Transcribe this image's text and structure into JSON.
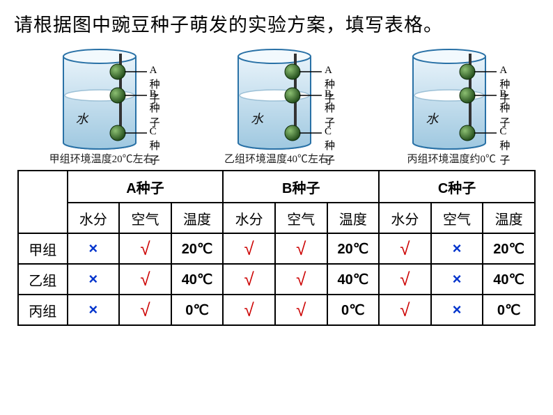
{
  "title": "请根据图中豌豆种子萌发的实验方案，填写表格。",
  "beakers": [
    {
      "caption": "甲组环境温度20℃左右",
      "water_label": "水"
    },
    {
      "caption": "乙组环境温度40℃左右",
      "water_label": "水"
    },
    {
      "caption": "丙组环境温度约0℃",
      "water_label": "水"
    }
  ],
  "seed_labels": {
    "a": "A种子",
    "b": "B种子",
    "c": "C种子"
  },
  "table": {
    "col_group_headers": [
      "A种子",
      "B种子",
      "C种子"
    ],
    "sub_headers": [
      "水分",
      "空气",
      "温度"
    ],
    "row_labels": [
      "甲组",
      "乙组",
      "丙组"
    ],
    "rows": [
      [
        {
          "v": "×",
          "t": "cross"
        },
        {
          "v": "√",
          "t": "tick"
        },
        {
          "v": "20℃",
          "t": "temp"
        },
        {
          "v": "√",
          "t": "tick"
        },
        {
          "v": "√",
          "t": "tick"
        },
        {
          "v": "20℃",
          "t": "temp"
        },
        {
          "v": "√",
          "t": "tick"
        },
        {
          "v": "×",
          "t": "cross"
        },
        {
          "v": "20℃",
          "t": "temp"
        }
      ],
      [
        {
          "v": "×",
          "t": "cross"
        },
        {
          "v": "√",
          "t": "tick"
        },
        {
          "v": "40℃",
          "t": "temp"
        },
        {
          "v": "√",
          "t": "tick"
        },
        {
          "v": "√",
          "t": "tick"
        },
        {
          "v": "40℃",
          "t": "temp"
        },
        {
          "v": "√",
          "t": "tick"
        },
        {
          "v": "×",
          "t": "cross"
        },
        {
          "v": "40℃",
          "t": "temp"
        }
      ],
      [
        {
          "v": "×",
          "t": "cross"
        },
        {
          "v": "√",
          "t": "tick"
        },
        {
          "v": "0℃",
          "t": "temp"
        },
        {
          "v": "√",
          "t": "tick"
        },
        {
          "v": "√",
          "t": "tick"
        },
        {
          "v": "0℃",
          "t": "temp"
        },
        {
          "v": "√",
          "t": "tick"
        },
        {
          "v": "×",
          "t": "cross"
        },
        {
          "v": "0℃",
          "t": "temp"
        }
      ]
    ]
  },
  "beaker_style": {
    "glass_stroke": "#2971a6",
    "glass_fill_top": "#d9ecf6",
    "glass_fill_mid": "#a7cfe5",
    "water_surface": "#ffffff",
    "water_stroke": "#7aa8c6",
    "seed_fill": "#2e5f27",
    "seed_hilite": "#7fb56c",
    "rod_stroke": "#2b2b2b"
  }
}
